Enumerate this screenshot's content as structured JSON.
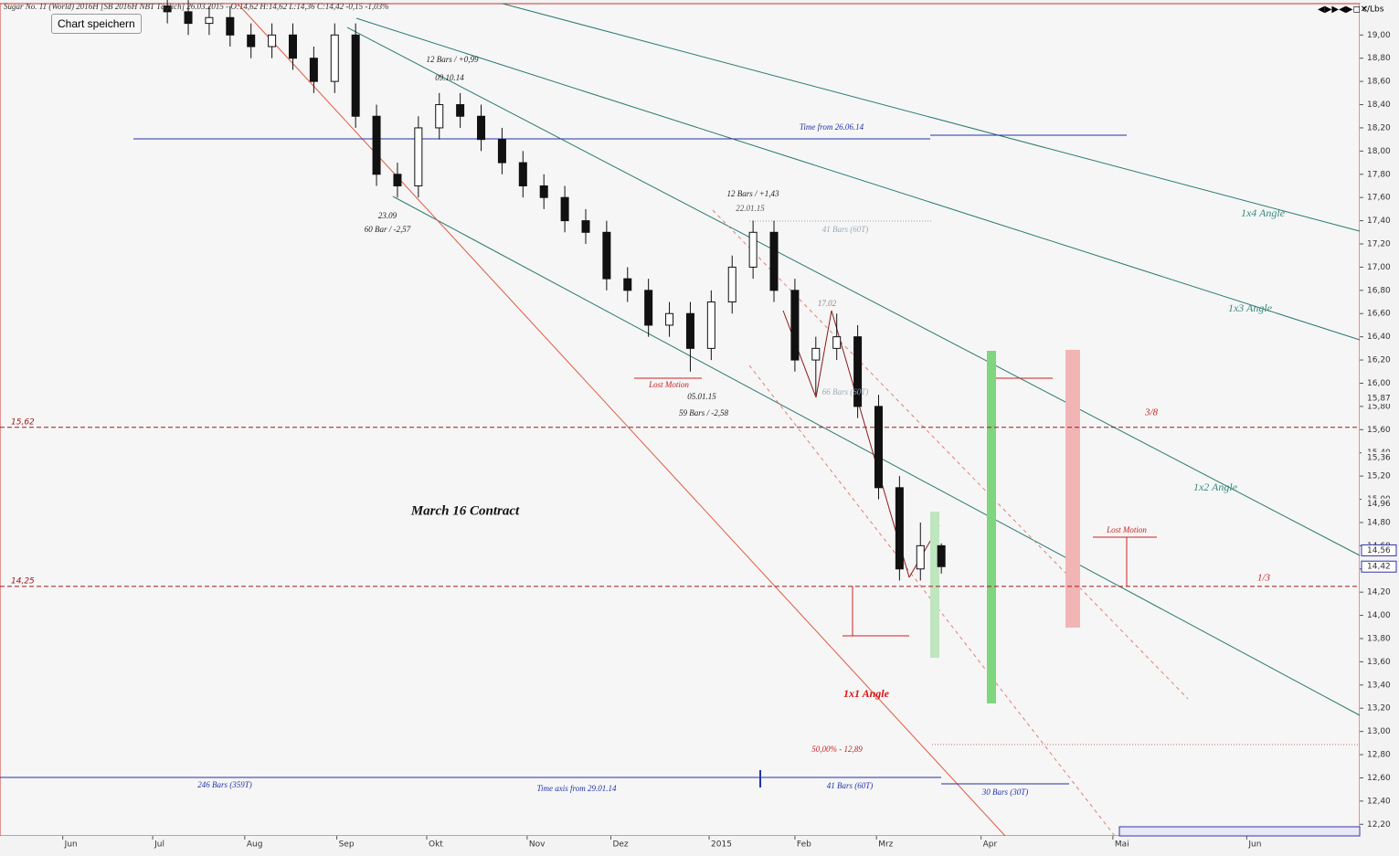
{
  "header": "Sugar No. 11 (World) 2016H [SB 2016H NBT Täglich] 26.03.2015 - O:14,62 H:14,62 L:14,36 C:14,42 -0,15 -1,03%",
  "button": "Chart speichern",
  "chart_data": {
    "type": "candlestick",
    "unit": "c/Lbs",
    "x": [
      8,
      9,
      10,
      11,
      12,
      13,
      14,
      15,
      16,
      17,
      18,
      19,
      20,
      21,
      22,
      23,
      24,
      25,
      26,
      27,
      28,
      29,
      30,
      31,
      32,
      33,
      34,
      35,
      36,
      37,
      38,
      39,
      40,
      41,
      42,
      43,
      44,
      45
    ],
    "open": [
      19.25,
      19.2,
      19.1,
      19.15,
      19.0,
      18.9,
      19.0,
      18.8,
      18.6,
      19.0,
      18.3,
      17.8,
      17.7,
      18.2,
      18.4,
      18.3,
      18.1,
      17.9,
      17.7,
      17.6,
      17.4,
      17.3,
      16.9,
      16.8,
      16.5,
      16.6,
      16.3,
      16.7,
      17.0,
      17.3,
      16.8,
      16.2,
      16.3,
      16.4,
      15.8,
      15.1,
      14.4,
      14.6
    ],
    "high": [
      19.35,
      19.3,
      19.25,
      19.25,
      19.1,
      19.1,
      19.1,
      18.9,
      19.1,
      19.1,
      18.4,
      17.9,
      18.3,
      18.5,
      18.5,
      18.4,
      18.2,
      18.0,
      17.8,
      17.7,
      17.5,
      17.4,
      17.0,
      16.9,
      16.7,
      16.7,
      16.8,
      17.1,
      17.4,
      17.4,
      16.9,
      16.4,
      16.6,
      16.5,
      15.9,
      15.2,
      14.8,
      14.62
    ],
    "low": [
      19.1,
      19.0,
      19.0,
      18.9,
      18.8,
      18.8,
      18.7,
      18.5,
      18.5,
      18.2,
      17.7,
      17.6,
      17.6,
      18.1,
      18.2,
      18.0,
      17.8,
      17.6,
      17.5,
      17.3,
      17.2,
      16.8,
      16.7,
      16.4,
      16.4,
      16.1,
      16.2,
      16.6,
      16.9,
      16.7,
      16.1,
      15.9,
      16.2,
      15.7,
      15.0,
      14.3,
      14.3,
      14.36
    ],
    "close": [
      19.2,
      19.1,
      19.15,
      19.0,
      18.9,
      19.0,
      18.8,
      18.6,
      19.0,
      18.3,
      17.8,
      17.7,
      18.2,
      18.4,
      18.3,
      18.1,
      17.9,
      17.7,
      17.6,
      17.4,
      17.3,
      16.9,
      16.8,
      16.5,
      16.6,
      16.3,
      16.7,
      17.0,
      17.3,
      16.8,
      16.2,
      16.3,
      16.4,
      15.8,
      15.1,
      14.4,
      14.6,
      14.42
    ],
    "up_color": "#ffffff",
    "down_color": "#111111",
    "xlim": [
      0,
      65
    ],
    "xticks": [
      {
        "value": 3,
        "label": "Jun"
      },
      {
        "value": 7.3,
        "label": "Jul"
      },
      {
        "value": 11.7,
        "label": "Aug"
      },
      {
        "value": 16.1,
        "label": "Sep"
      },
      {
        "value": 20.4,
        "label": "Okt"
      },
      {
        "value": 25.2,
        "label": "Nov"
      },
      {
        "value": 29.2,
        "label": "Dez"
      },
      {
        "value": 33.9,
        "label": "2015"
      },
      {
        "value": 38,
        "label": "Feb"
      },
      {
        "value": 41.9,
        "label": "Mrz"
      },
      {
        "value": 46.9,
        "label": "Apr"
      },
      {
        "value": 53.2,
        "label": "Mai"
      },
      {
        "value": 59.6,
        "label": "Jun"
      }
    ],
    "ylim": [
      12.1,
      19.27
    ],
    "yticks": [
      {
        "value": 12.2,
        "label": "12,20"
      },
      {
        "value": 12.4,
        "label": "12,40"
      },
      {
        "value": 12.6,
        "label": "12,60"
      },
      {
        "value": 12.8,
        "label": "12,80"
      },
      {
        "value": 13.0,
        "label": "13,00"
      },
      {
        "value": 13.2,
        "label": "13,20"
      },
      {
        "value": 13.4,
        "label": "13,40"
      },
      {
        "value": 13.6,
        "label": "13,60"
      },
      {
        "value": 13.8,
        "label": "13,80"
      },
      {
        "value": 14.0,
        "label": "14,00"
      },
      {
        "value": 14.2,
        "label": "14,20"
      },
      {
        "value": 14.4,
        "label": "14,40"
      },
      {
        "value": 14.6,
        "label": "14,60"
      },
      {
        "value": 14.8,
        "label": "14,80"
      },
      {
        "value": 15.0,
        "label": "15,00"
      },
      {
        "value": 15.2,
        "label": "15,20"
      },
      {
        "value": 15.4,
        "label": "15,40"
      },
      {
        "value": 15.6,
        "label": "15,60"
      },
      {
        "value": 15.8,
        "label": "15,80"
      },
      {
        "value": 16.0,
        "label": "16,00"
      },
      {
        "value": 16.2,
        "label": "16,20"
      },
      {
        "value": 16.4,
        "label": "16,40"
      },
      {
        "value": 16.6,
        "label": "16,60"
      },
      {
        "value": 16.8,
        "label": "16,80"
      },
      {
        "value": 17.0,
        "label": "17,00"
      },
      {
        "value": 17.2,
        "label": "17,20"
      },
      {
        "value": 17.4,
        "label": "17,40"
      },
      {
        "value": 17.6,
        "label": "17,60"
      },
      {
        "value": 17.8,
        "label": "17,80"
      },
      {
        "value": 18.0,
        "label": "18,00"
      },
      {
        "value": 18.2,
        "label": "18,20"
      },
      {
        "value": 18.4,
        "label": "18,40"
      },
      {
        "value": 18.6,
        "label": "18,60"
      },
      {
        "value": 18.8,
        "label": "18,80"
      },
      {
        "value": 19.0,
        "label": "19,00"
      }
    ],
    "levels": [
      {
        "value": 15.62,
        "label": "15,62"
      },
      {
        "value": 14.25,
        "label": "14,25"
      }
    ],
    "price_markers": [
      {
        "value": 15.87,
        "label": "15,87"
      },
      {
        "value": 15.36,
        "label": "15,36"
      },
      {
        "value": 14.96,
        "label": "14,96"
      },
      {
        "value": 14.56,
        "label": "14,56"
      },
      {
        "value": 14.42,
        "label": "14,42"
      }
    ],
    "annotations": [
      "12 Bars / +0,99",
      "09.10.14",
      "23.09",
      "60 Bar / -2,57",
      "12 Bars / +1,43",
      "22.01.15",
      "41 Bars (60T)",
      "17.02",
      "66 Bars (60T)",
      "Lost Motion",
      "05.01.15",
      "59 Bars / -2,58",
      "Time  from 26.06.14",
      "March 16 Contract",
      "1x4 Angle",
      "1x3 Angle",
      "1x2 Angle",
      "1x1 Angle",
      "Lost Motion",
      "3/8",
      "1/3",
      "50,00% - 12,89",
      "246 Bars (359T)",
      "Time axis from 29.01.14",
      "41 Bars (60T)",
      "30 Bars (30T)"
    ]
  }
}
